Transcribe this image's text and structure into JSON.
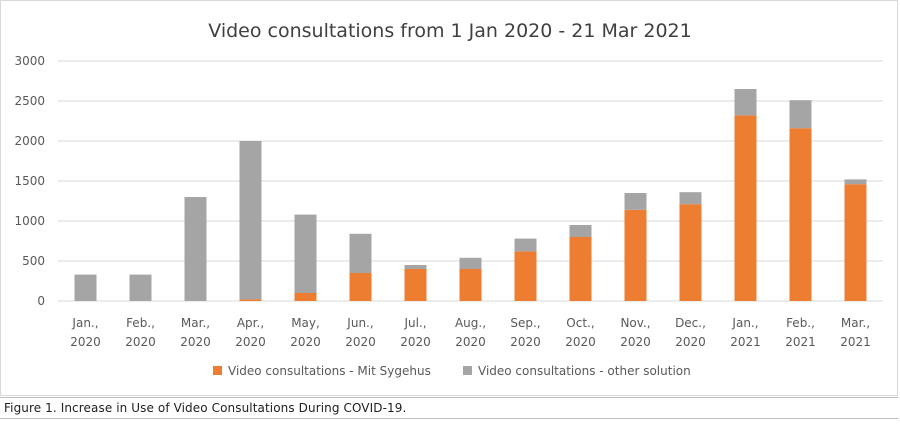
{
  "figure_caption": "Figure 1. Increase in Use of Video Consultations During COVID-19.",
  "colors": {
    "mit_sygehus": "#ED7D31",
    "other_solution": "#A5A5A5",
    "grid": "#d9d9d9",
    "text": "#595959"
  },
  "chart_data": {
    "type": "bar",
    "stacked": true,
    "title": "Video consultations from 1  Jan 2020 - 21  Mar 2021",
    "xlabel": "",
    "ylabel": "",
    "ylim": [
      0,
      3000
    ],
    "yticks": [
      0,
      500,
      1000,
      1500,
      2000,
      2500,
      3000
    ],
    "grid": true,
    "legend_position": "bottom",
    "categories": [
      [
        "Jan.,",
        "2020"
      ],
      [
        "Feb.,",
        "2020"
      ],
      [
        "Mar.,",
        "2020"
      ],
      [
        "Apr.,",
        "2020"
      ],
      [
        "May,",
        "2020"
      ],
      [
        "Jun.,",
        "2020"
      ],
      [
        "Jul.,",
        "2020"
      ],
      [
        "Aug.,",
        "2020"
      ],
      [
        "Sep.,",
        "2020"
      ],
      [
        "Oct.,",
        "2020"
      ],
      [
        "Nov.,",
        "2020"
      ],
      [
        "Dec.,",
        "2020"
      ],
      [
        "Jan.,",
        "2021"
      ],
      [
        "Feb.,",
        "2021"
      ],
      [
        "Mar.,",
        "2021"
      ]
    ],
    "series": [
      {
        "name": "Video consultations - Mit Sygehus",
        "color": "#ED7D31",
        "values": [
          0,
          0,
          0,
          20,
          100,
          350,
          400,
          400,
          620,
          800,
          1140,
          1210,
          2320,
          2160,
          1460
        ]
      },
      {
        "name": "Video consultations - other solution",
        "color": "#A5A5A5",
        "values": [
          330,
          330,
          1300,
          1980,
          980,
          490,
          50,
          140,
          160,
          150,
          210,
          150,
          330,
          350,
          60
        ]
      }
    ]
  }
}
